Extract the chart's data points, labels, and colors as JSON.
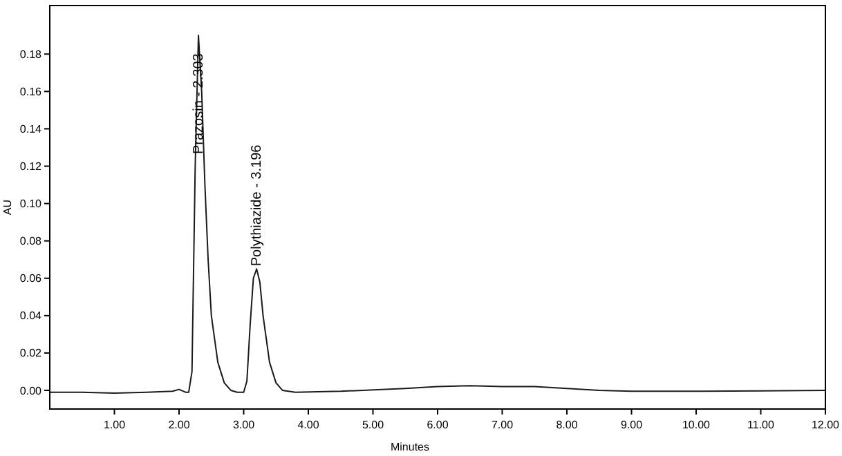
{
  "chart_data": {
    "type": "line",
    "xlabel": "Minutes",
    "ylabel": "AU",
    "x": [
      0,
      0.5,
      1.0,
      1.5,
      1.9,
      2.0,
      2.1,
      2.15,
      2.2,
      2.25,
      2.3,
      2.35,
      2.4,
      2.45,
      2.5,
      2.6,
      2.7,
      2.8,
      2.9,
      3.0,
      3.05,
      3.1,
      3.15,
      3.2,
      3.25,
      3.3,
      3.4,
      3.5,
      3.6,
      3.8,
      4.5,
      5.5,
      6.0,
      6.5,
      7.0,
      7.5,
      8.0,
      8.5,
      9.0,
      10,
      11,
      12
    ],
    "series": [
      {
        "color": "#1a1a1a",
        "values": [
          -0.001,
          -0.001,
          -0.0015,
          -0.001,
          -0.0005,
          0.0005,
          -0.001,
          -0.001,
          0.01,
          0.12,
          0.19,
          0.16,
          0.11,
          0.07,
          0.04,
          0.015,
          0.004,
          0.0,
          -0.001,
          -0.001,
          0.005,
          0.035,
          0.06,
          0.065,
          0.058,
          0.04,
          0.015,
          0.004,
          0.0,
          -0.001,
          -0.0005,
          0.001,
          0.002,
          0.0025,
          0.002,
          0.002,
          0.001,
          0.0,
          -0.0005,
          -0.0005,
          -0.0003,
          0.0
        ]
      }
    ],
    "xlim": [
      0,
      12
    ],
    "ylim": [
      -0.01,
      0.206
    ],
    "xticks": [
      {
        "value": 1,
        "label": "1.00"
      },
      {
        "value": 2,
        "label": "2.00"
      },
      {
        "value": 3,
        "label": "3.00"
      },
      {
        "value": 4,
        "label": "4.00"
      },
      {
        "value": 5,
        "label": "5.00"
      },
      {
        "value": 6,
        "label": "6.00"
      },
      {
        "value": 7,
        "label": "7.00"
      },
      {
        "value": 8,
        "label": "8.00"
      },
      {
        "value": 9,
        "label": "9.00"
      },
      {
        "value": 10,
        "label": "10.00"
      },
      {
        "value": 11,
        "label": "11.00"
      },
      {
        "value": 12,
        "label": "12.00"
      }
    ],
    "yticks": [
      {
        "value": 0,
        "label": "0.00"
      },
      {
        "value": 0.02,
        "label": "0.02"
      },
      {
        "value": 0.04,
        "label": "0.04"
      },
      {
        "value": 0.06,
        "label": "0.06"
      },
      {
        "value": 0.08,
        "label": "0.08"
      },
      {
        "value": 0.1,
        "label": "0.10"
      },
      {
        "value": 0.12,
        "label": "0.12"
      },
      {
        "value": 0.14,
        "label": "0.14"
      },
      {
        "value": 0.16,
        "label": "0.16"
      },
      {
        "value": 0.18,
        "label": "0.18"
      }
    ],
    "grid": false,
    "marker": "none",
    "line_style": "solid",
    "annotations": [
      {
        "text": "Prazosin - 2.303",
        "x": 2.303,
        "y": 0.125
      },
      {
        "text": "Polythiazide - 3.196",
        "x": 3.196,
        "y": 0.065
      }
    ]
  }
}
